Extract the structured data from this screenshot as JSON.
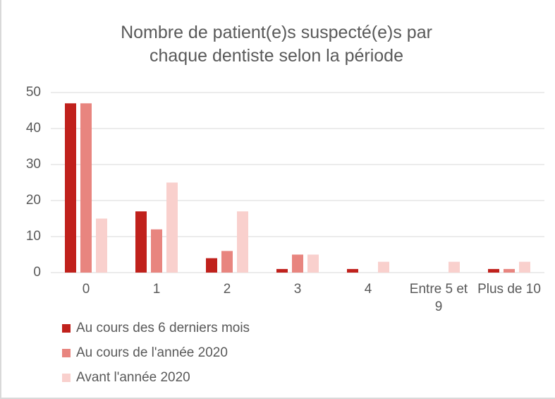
{
  "chart_data": {
    "type": "bar",
    "title": "Nombre de patient(e)s suspecté(e)s par chaque dentiste selon la période",
    "categories": [
      "0",
      "1",
      "2",
      "3",
      "4",
      "Entre 5 et 9",
      "Plus de 10"
    ],
    "series": [
      {
        "name": "Au cours des 6 derniers mois",
        "color": "#c0211c",
        "values": [
          47,
          17,
          4,
          1,
          1,
          0,
          1
        ]
      },
      {
        "name": "Au cours de l'année 2020",
        "color": "#e8857f",
        "values": [
          47,
          12,
          6,
          5,
          0,
          0,
          1
        ]
      },
      {
        "name": "Avant l'année 2020",
        "color": "#f9d0cd",
        "values": [
          15,
          25,
          17,
          5,
          3,
          3,
          3
        ]
      }
    ],
    "ylim": [
      0,
      50
    ],
    "yticks": [
      0,
      10,
      20,
      30,
      40,
      50
    ],
    "grid": true,
    "legend": "bottom-left"
  }
}
